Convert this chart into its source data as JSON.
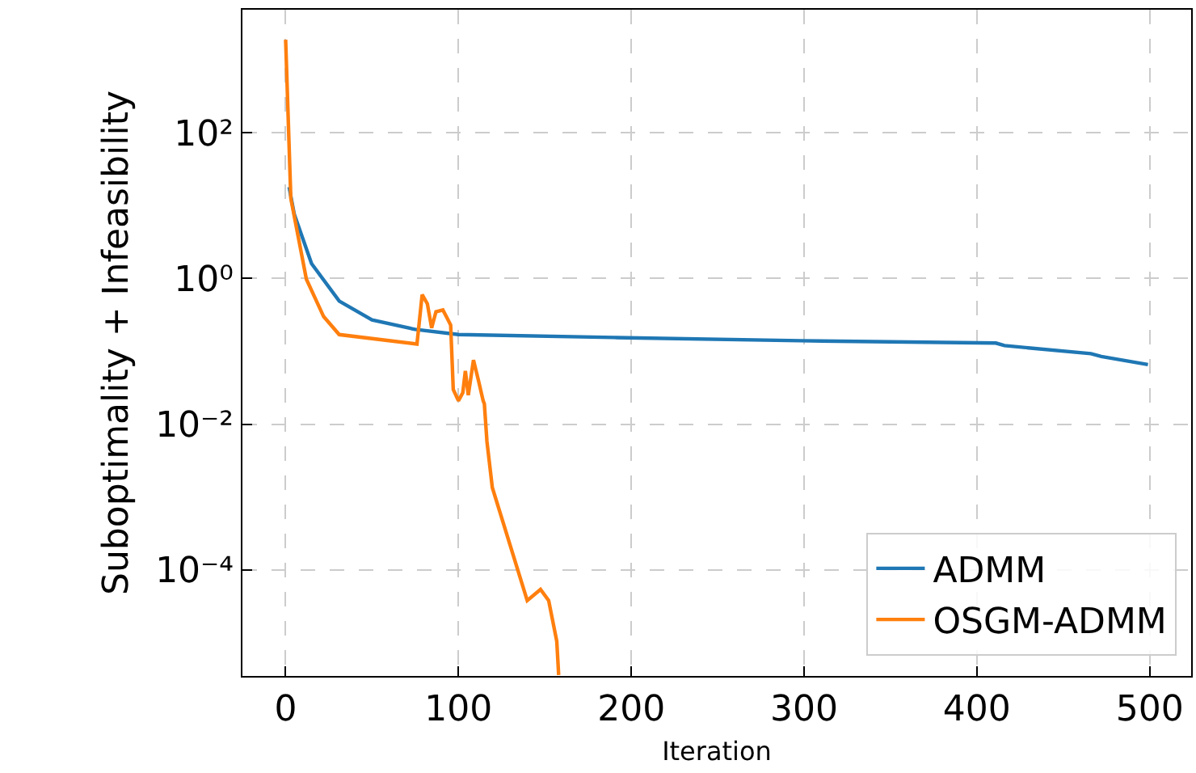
{
  "chart_data": {
    "type": "line",
    "xlabel": "Iteration",
    "ylabel": "Suboptimality + Infeasibility",
    "log": "y",
    "grid": true,
    "legend": "bottom right",
    "marker": "none",
    "line_style": "solid",
    "xlim": [
      -25,
      524
    ],
    "xticks": [
      0,
      100,
      200,
      300,
      400,
      500
    ],
    "ylim": [
      3.5e-06,
      4900
    ],
    "yticks": [
      {
        "value": 0.0001,
        "label": "10⁻⁴"
      },
      {
        "value": 0.01,
        "label": "10⁻²"
      },
      {
        "value": 1,
        "label": "10⁰"
      },
      {
        "value": 100,
        "label": "10²"
      }
    ],
    "series": [
      {
        "name": "ADMM",
        "color": "#1f77b4",
        "x": [
          2,
          5,
          15,
          31,
          50,
          75,
          100,
          190,
          298,
          411,
          416,
          466,
          472,
          499
        ],
        "values": [
          18,
          7.6,
          1.6,
          0.49,
          0.27,
          0.2,
          0.17,
          0.155,
          0.14,
          0.13,
          0.12,
          0.093,
          0.085,
          0.066
        ]
      },
      {
        "name": "OSGM-ADMM",
        "color": "#ff7f0e",
        "x": [
          0,
          3,
          12,
          22,
          31,
          76,
          79,
          82,
          84.5,
          87,
          91,
          93,
          95.5,
          97,
          100,
          102.5,
          104,
          105.7,
          108.7,
          111.8,
          114.3,
          115,
          116.5,
          119.6,
          139.8,
          147.5,
          152.2,
          156.9,
          158
        ],
        "values": [
          1900,
          12.6,
          0.98,
          0.3,
          0.17,
          0.126,
          0.6,
          0.45,
          0.21,
          0.35,
          0.37,
          0.3,
          0.23,
          0.03,
          0.021,
          0.027,
          0.054,
          0.025,
          0.076,
          0.038,
          0.021,
          0.019,
          0.0058,
          0.00135,
          3.8e-05,
          5.4e-05,
          3.8e-05,
          1.05e-05,
          3.6e-06
        ]
      }
    ]
  }
}
